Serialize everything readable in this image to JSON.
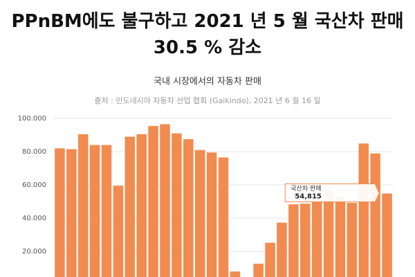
{
  "header": {
    "title": "PPnBM에도 불구하고 2021 년 5 월 국산차 판매 30.5 % 감소"
  },
  "chart_data": {
    "type": "bar",
    "title": "국내 시장에서의 자동차 판매",
    "subtitle": "출처 : 인도네시아 자동차 산업 협회 (Gaikindo), 2021 년 6 월 16 일",
    "categories": [
      null,
      null,
      null,
      null,
      null,
      null,
      null,
      null,
      null,
      null,
      null,
      null,
      null,
      null,
      null,
      null,
      null,
      null,
      null,
      null,
      null,
      null,
      null,
      null,
      null,
      null,
      null,
      null,
      null
    ],
    "series": [
      {
        "name": "국산차 판매",
        "color": "#f28b4f",
        "values": [
          82000,
          81500,
          90500,
          84000,
          84000,
          59500,
          89000,
          90500,
          95500,
          96500,
          91000,
          87500,
          81000,
          79500,
          76500,
          7900,
          3500,
          12600,
          25200,
          37300,
          48300,
          48700,
          51000,
          57000,
          52900,
          49200,
          84900,
          78900,
          54815
        ],
        "value_labels": [
          null,
          null,
          null,
          null,
          null,
          null,
          null,
          null,
          null,
          null,
          null,
          null,
          null,
          null,
          null,
          null,
          null,
          null,
          null,
          null,
          null,
          null,
          null,
          null,
          null,
          null,
          null,
          null,
          "54,815"
        ]
      }
    ],
    "ylim": [
      0,
      100000
    ],
    "yticks": [
      {
        "value": 20000,
        "label": "20.000"
      },
      {
        "value": 40000,
        "label": "40.000"
      },
      {
        "value": 60000,
        "label": "60.000"
      },
      {
        "value": 80000,
        "label": "80.000"
      },
      {
        "value": 100000,
        "label": "100.000"
      }
    ],
    "grid": true
  }
}
